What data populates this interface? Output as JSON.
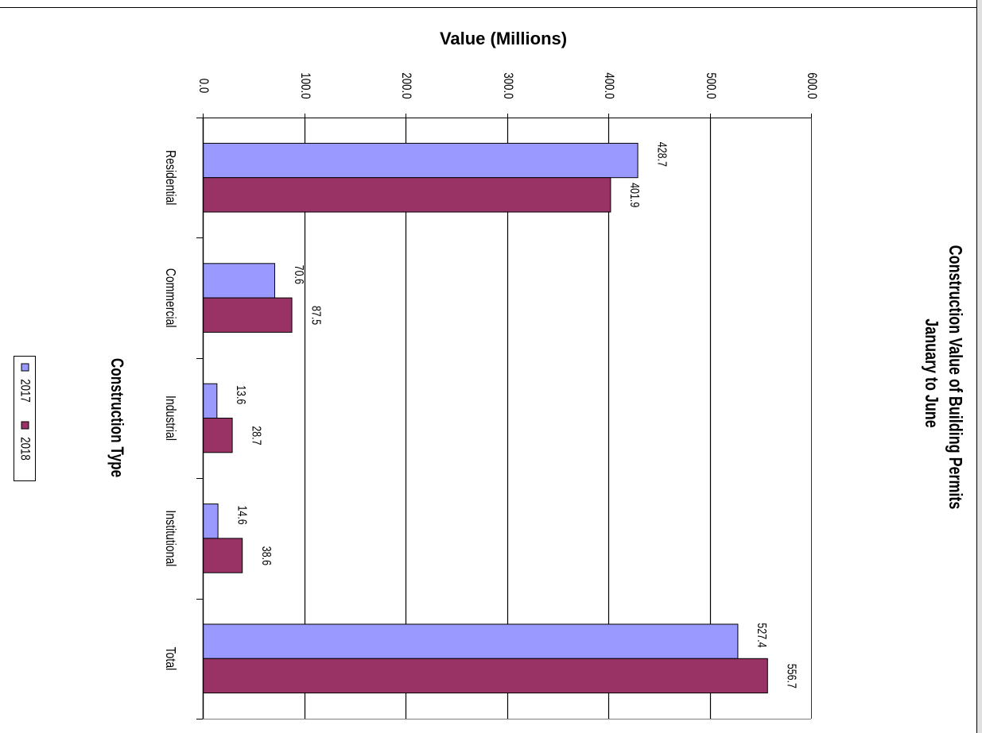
{
  "chart_data": {
    "type": "bar",
    "orientation": "horizontal, displayed rotated 90 degrees clockwise",
    "title": "Construction Value of Building Permits",
    "subtitle": "January to June",
    "xlabel": "Construction Type",
    "ylabel": "Value (Millions)",
    "categories": [
      "Residential",
      "Commercial",
      "Industrial",
      "Institutional",
      "Total"
    ],
    "series": [
      {
        "name": "2017",
        "values": [
          428.7,
          70.6,
          13.6,
          14.6,
          527.4
        ],
        "labels": [
          "428.7",
          "70.6",
          "13.6",
          "14.6",
          "527.4"
        ],
        "color": "#9999ff"
      },
      {
        "name": "2018",
        "values": [
          401.9,
          87.5,
          28.7,
          38.6,
          556.7
        ],
        "labels": [
          "401.9",
          "87.5",
          "28.7",
          "38.6",
          "556.7"
        ],
        "color": "#993366"
      }
    ],
    "ylim": [
      0,
      600
    ],
    "ticks": [
      0,
      100,
      200,
      300,
      400,
      500,
      600
    ],
    "tick_labels": [
      "0.0",
      "100.0",
      "200.0",
      "300.0",
      "400.0",
      "500.0",
      "600.0"
    ],
    "grid": true,
    "legend_position": "bottom"
  }
}
